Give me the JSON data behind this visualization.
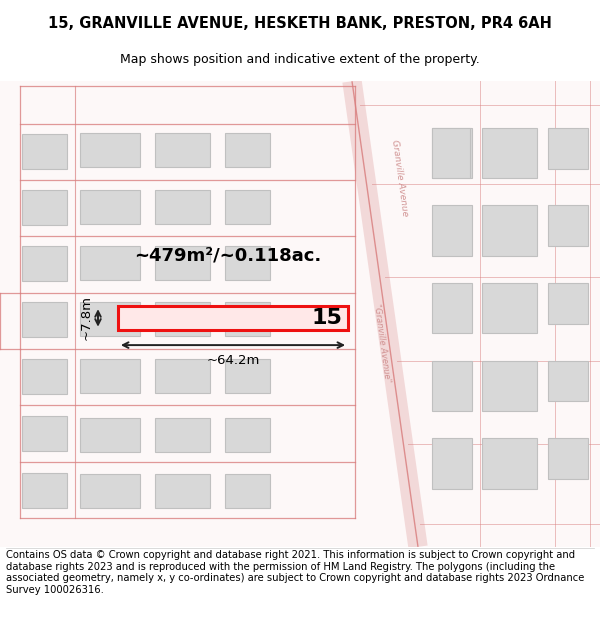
{
  "title_line1": "15, GRANVILLE AVENUE, HESKETH BANK, PRESTON, PR4 6AH",
  "title_line2": "Map shows position and indicative extent of the property.",
  "area_label": "~479m²/~0.118ac.",
  "width_label": "~64.2m",
  "height_label": "~7.8m",
  "plot_number": "15",
  "footer_text": "Contains OS data © Crown copyright and database right 2021. This information is subject to Crown copyright and database rights 2023 and is reproduced with the permission of HM Land Registry. The polygons (including the associated geometry, namely x, y co-ordinates) are subject to Crown copyright and database rights 2023 Ordnance Survey 100026316.",
  "bg_color": "#ffffff",
  "map_bg": "#f9f5f5",
  "road_color": "#e8a0a0",
  "plot_line_color": "#d98080",
  "building_fill": "#d8d8d8",
  "building_edge": "#c0c0c0",
  "highlight_color": "#ee1111",
  "highlight_fill": "#ffe8e8",
  "text_color": "#000000",
  "road_label_color": "#cc8888",
  "dim_line_color": "#222222",
  "title_fontsize": 10.5,
  "subtitle_fontsize": 9,
  "footer_fontsize": 7.2,
  "area_fontsize": 13,
  "plot_num_fontsize": 16,
  "dim_fontsize": 9.5
}
